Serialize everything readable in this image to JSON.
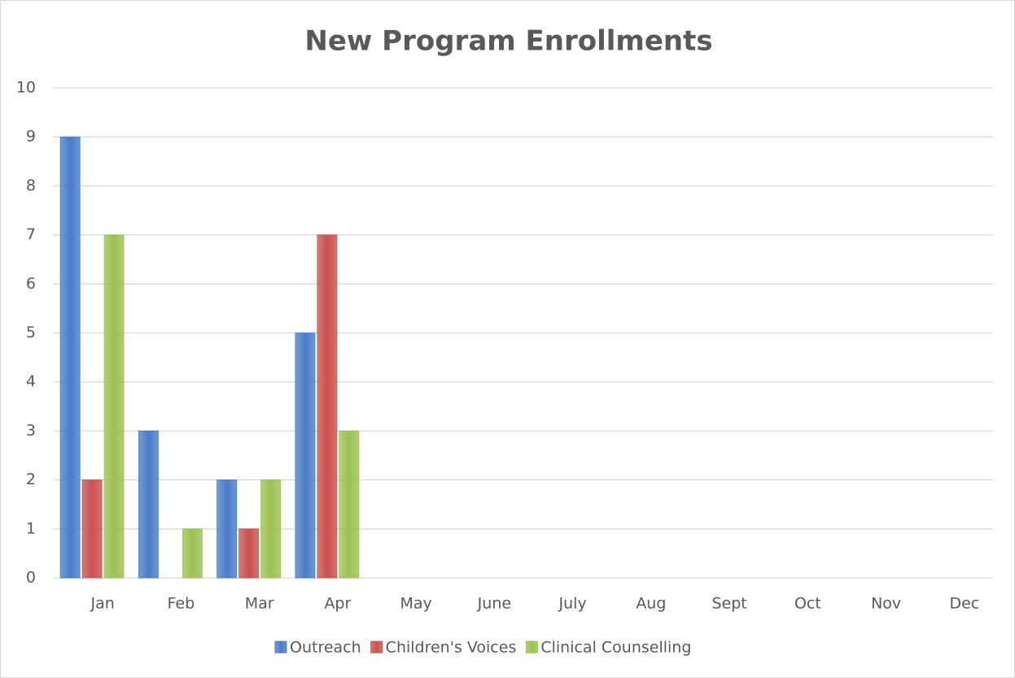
{
  "chart_data": {
    "type": "bar",
    "title": "New Program Enrollments",
    "categories": [
      "Jan",
      "Feb",
      "Mar",
      "Apr",
      "May",
      "June",
      "July",
      "Aug",
      "Sept",
      "Oct",
      "Nov",
      "Dec"
    ],
    "series": [
      {
        "name": "Outreach",
        "color": "#4a7cc9",
        "values": [
          9,
          3,
          2,
          5,
          null,
          null,
          null,
          null,
          null,
          null,
          null,
          null
        ]
      },
      {
        "name": "Children's Voices",
        "color": "#c9504d",
        "values": [
          2,
          0,
          1,
          7,
          null,
          null,
          null,
          null,
          null,
          null,
          null,
          null
        ]
      },
      {
        "name": "Clinical Counselling",
        "color": "#9bc152",
        "values": [
          7,
          1,
          2,
          3,
          null,
          null,
          null,
          null,
          null,
          null,
          null,
          null
        ]
      }
    ],
    "ylim": [
      0,
      10
    ],
    "yticks": [
      0,
      1,
      2,
      3,
      4,
      5,
      6,
      7,
      8,
      9,
      10
    ],
    "grid": true,
    "legend": "bottom"
  }
}
